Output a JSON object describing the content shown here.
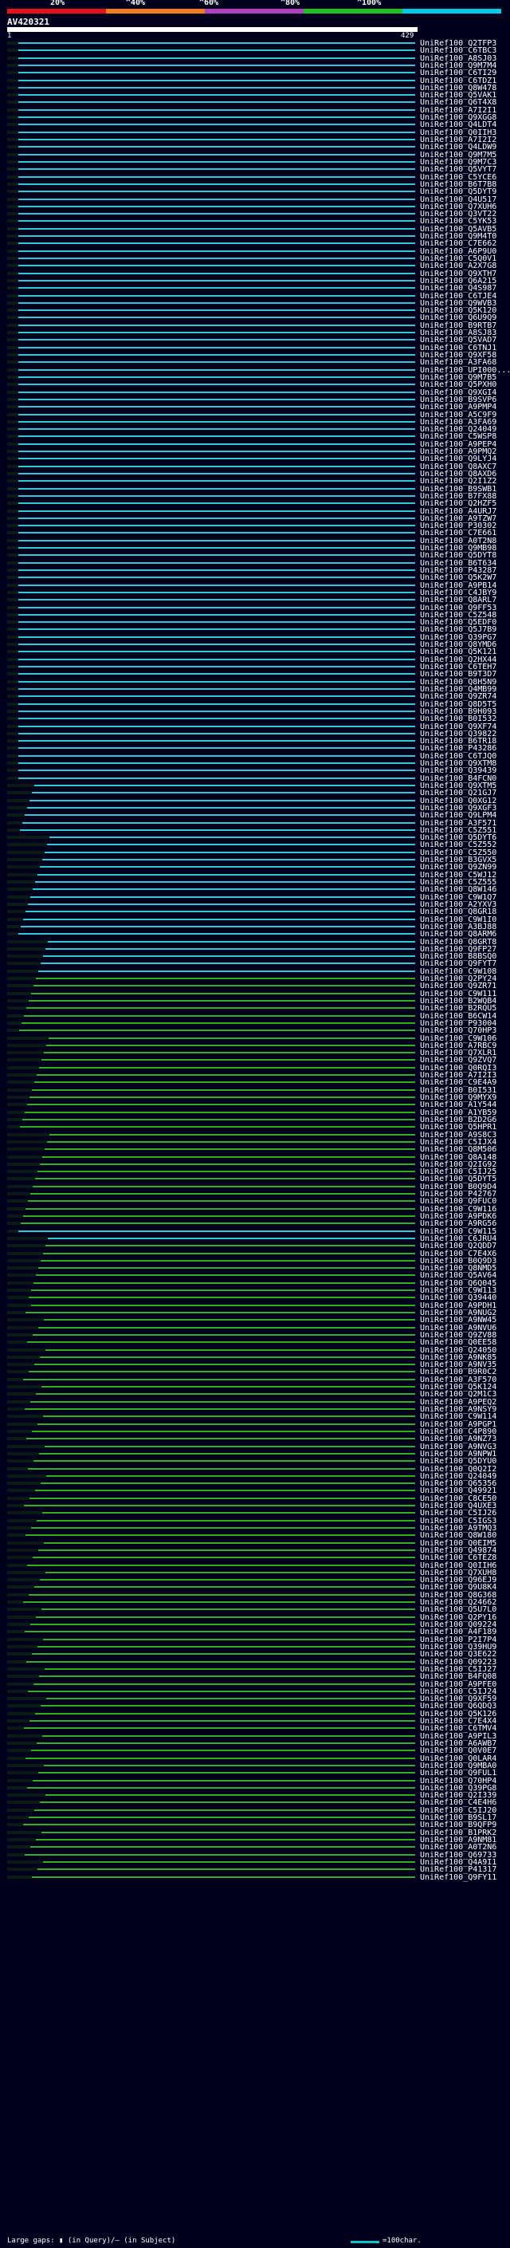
{
  "scale": {
    "labels": [
      "20%",
      "^40%",
      "^60%",
      "^80%",
      "^100%"
    ],
    "colors": [
      "#e8101c",
      "#f07c1c",
      "#b040c0",
      "#20c020",
      "#00c8e8"
    ]
  },
  "query": {
    "title": "AV420321",
    "start": "1",
    "end": "429"
  },
  "legend": {
    "gaps_text": "Large gaps: ▮ (in Query)/– (in Subject)",
    "scale_text": "=100char."
  },
  "hit_colors": {
    "cyan": "#30c8d8",
    "green": "#30b020",
    "dark": "#0a1a14"
  },
  "hits": [
    "UniRef100_Q2TFP3",
    "UniRef100_C6TBC3",
    "UniRef100_A8SJ03",
    "UniRef100_Q9M7M4",
    "UniRef100_C6TI29",
    "UniRef100_C6TDZ1",
    "UniRef100_Q8W478",
    "UniRef100_Q5VAK1",
    "UniRef100_Q6T4X8",
    "UniRef100_A7I2I1",
    "UniRef100_Q9XGG8",
    "UniRef100_Q4LDT4",
    "UniRef100_Q0IIH3",
    "UniRef100_A7I2I2",
    "UniRef100_Q4LDW9",
    "UniRef100_Q9M7M5",
    "UniRef100_Q9M7C3",
    "UniRef100_Q5VYT7",
    "UniRef100_C5YCE6",
    "UniRef100_B6T7B8",
    "UniRef100_Q5DYT9",
    "UniRef100_Q4U517",
    "UniRef100_Q7XUH6",
    "UniRef100_Q3VT22",
    "UniRef100_C5YK53",
    "UniRef100_Q5AVB5",
    "UniRef100_Q9M4T0",
    "UniRef100_C7E662",
    "UniRef100_A6P9U0",
    "UniRef100_C5Q0V1",
    "UniRef100_A2X7G8",
    "UniRef100_Q9XTH7",
    "UniRef100_Q6A215",
    "UniRef100_Q4S987",
    "UniRef100_C6TJE4",
    "UniRef100_Q9WVB3",
    "UniRef100_Q5K120",
    "UniRef100_Q6U9Q9",
    "UniRef100_B9RTB7",
    "UniRef100_A8SJ83",
    "UniRef100_Q5VAD7",
    "UniRef100_C6TNJ1",
    "UniRef100_Q9XF58",
    "UniRef100_A3FA68",
    "UniRef100_UPI000...",
    "UniRef100_Q9M7B5",
    "UniRef100_Q5PXH0",
    "UniRef100_Q9XGI4",
    "UniRef100_B9SVP6",
    "UniRef100_A9PMP4",
    "UniRef100_A5C9F9",
    "UniRef100_A3FA69",
    "UniRef100_Q24049",
    "UniRef100_C5WSP8",
    "UniRef100_A9PEP4",
    "UniRef100_A9PMQ2",
    "UniRef100_Q9LYJ4",
    "UniRef100_Q8AXC7",
    "UniRef100_Q8AXD6",
    "UniRef100_Q2I1Z2",
    "UniRef100_B9SWB1",
    "UniRef100_B7FX88",
    "UniRef100_Q2HZF5",
    "UniRef100_A4URJ7",
    "UniRef100_A9TZW7",
    "UniRef100_P30302",
    "UniRef100_C7E661",
    "UniRef100_A0T2N8",
    "UniRef100_Q9MB98",
    "UniRef100_Q5DYT8",
    "UniRef100_B6T634",
    "UniRef100_P43287",
    "UniRef100_Q5K2W7",
    "UniRef100_A9PB14",
    "UniRef100_C4JBY9",
    "UniRef100_Q8ARL7",
    "UniRef100_Q9FF53",
    "UniRef100_C5Z548",
    "UniRef100_Q5EDF0",
    "UniRef100_Q5J7B9",
    "UniRef100_Q39PG7",
    "UniRef100_Q8YMD6",
    "UniRef100_Q5K121",
    "UniRef100_Q2HX44",
    "UniRef100_C6TEH7",
    "UniRef100_B9T3D7",
    "UniRef100_Q8H5N9",
    "UniRef100_Q4MB99",
    "UniRef100_Q9ZR74",
    "UniRef100_Q8D5T5",
    "UniRef100_B9H093",
    "UniRef100_B0I532",
    "UniRef100_Q9XF74",
    "UniRef100_Q39822",
    "UniRef100_B6TR18",
    "UniRef100_P43286",
    "UniRef100_C6TJQ0",
    "UniRef100_Q9XTM8",
    "UniRef100_Q39439",
    "UniRef100_B4FCN0",
    "UniRef100_Q9XTM5",
    "UniRef100_Q21GJ7",
    "UniRef100_Q0XG12",
    "UniRef100_Q9XGF3",
    "UniRef100_Q9LPM4",
    "UniRef100_A3F571",
    "UniRef100_C5Z551",
    "UniRef100_Q5DYT6",
    "UniRef100_C5Z552",
    "UniRef100_C5Z550",
    "UniRef100_B3GVX5",
    "UniRef100_Q9ZN99",
    "UniRef100_C5WJ12",
    "UniRef100_C5Z555",
    "UniRef100_Q8W146",
    "UniRef100_C9W1Q7",
    "UniRef100_A2YXV3",
    "UniRef100_Q8GR18",
    "UniRef100_C9W1I0",
    "UniRef100_A3BJ88",
    "UniRef100_Q8ARM6",
    "UniRef100_Q8GRT8",
    "UniRef100_Q9FP27",
    "UniRef100_B8BSQ0",
    "UniRef100_Q9FYT7",
    "UniRef100_C9W108",
    "UniRef100_Q2PY24",
    "UniRef100_Q9ZR71",
    "UniRef100_C9W111",
    "UniRef100_B2WQB4",
    "UniRef100_B2RQU5",
    "UniRef100_B6CW14",
    "UniRef100_P93004",
    "UniRef100_Q70HP3",
    "UniRef100_C9W106",
    "UniRef100_A7RBC9",
    "UniRef100_Q7XLR1",
    "UniRef100_Q9ZVQ7",
    "UniRef100_Q0RQI3",
    "UniRef100_A7I2I3",
    "UniRef100_C9E4A9",
    "UniRef100_B0I531",
    "UniRef100_Q9MYX9",
    "UniRef100_A1Y544",
    "UniRef100_A1YB59",
    "UniRef100_B2D2G6",
    "UniRef100_Q5HPR1",
    "UniRef100_A9S8C3",
    "UniRef100_C5IJX4",
    "UniRef100_Q8M506",
    "UniRef100_Q8A148",
    "UniRef100_Q2IG92",
    "UniRef100_C5IJ25",
    "UniRef100_Q5DYT5",
    "UniRef100_B0Q9D4",
    "UniRef100_P42767",
    "UniRef100_Q9FUC0",
    "UniRef100_C9W116",
    "UniRef100_A9PDK6",
    "UniRef100_A9RG56",
    "UniRef100_C9W115",
    "UniRef100_C6JRU4",
    "UniRef100_Q2QDD7",
    "UniRef100_C7E4X6",
    "UniRef100_B0Q9D3",
    "UniRef100_Q8NMD5",
    "UniRef100_Q5AV64",
    "UniRef100_Q6Q045",
    "UniRef100_C9W113",
    "UniRef100_Q39440",
    "UniRef100_A9PDH1",
    "UniRef100_A9NUG2",
    "UniRef100_A9NW45",
    "UniRef100_A9NVU6",
    "UniRef100_Q9ZV88",
    "UniRef100_Q0EE58",
    "UniRef100_Q24050",
    "UniRef100_A9NK85",
    "UniRef100_A9NV35",
    "UniRef100_B9R0C2",
    "UniRef100_A3F570",
    "UniRef100_Q5K124",
    "UniRef100_Q2M1C3",
    "UniRef100_A9PEQ2",
    "UniRef100_A9NSY9",
    "UniRef100_C9W114",
    "UniRef100_A9PGP1",
    "UniRef100_C4P890",
    "UniRef100_A9NZ73",
    "UniRef100_A9NVG3",
    "UniRef100_A9NPW1",
    "UniRef100_Q5DYU0",
    "UniRef100_Q0Q2I2",
    "UniRef100_Q24049",
    "UniRef100_Q65356",
    "UniRef100_Q49921",
    "UniRef100_C8CE50",
    "UniRef100_Q4UXE3",
    "UniRef100_C5IJ26",
    "UniRef100_C5IGS3",
    "UniRef100_A9TMQ3",
    "UniRef100_Q8W180",
    "UniRef100_Q0EIM5",
    "UniRef100_Q49874",
    "UniRef100_C6TEZ8",
    "UniRef100_Q0IIH6",
    "UniRef100_Q7XUH8",
    "UniRef100_Q96EJ9",
    "UniRef100_Q9U8K4",
    "UniRef100_Q8G368",
    "UniRef100_Q24662",
    "UniRef100_Q5U7L0",
    "UniRef100_Q2PY16",
    "UniRef100_Q09224",
    "UniRef100_A4F189",
    "UniRef100_P2I7P4",
    "UniRef100_Q39HU9",
    "UniRef100_Q3E622",
    "UniRef100_Q09223",
    "UniRef100_C5IJ27",
    "UniRef100_B4FQ08",
    "UniRef100_A9PFE0",
    "UniRef100_C5IJ24",
    "UniRef100_Q9XF59",
    "UniRef100_Q6QDQ3",
    "UniRef100_Q5K126",
    "UniRef100_C7E4X4",
    "UniRef100_C6TMV4",
    "UniRef100_A9PIL3",
    "UniRef100_A6AWB7",
    "UniRef100_Q0V0E7",
    "UniRef100_Q0LAR4",
    "UniRef100_Q9MBA0",
    "UniRef100_Q9FUL1",
    "UniRef100_Q70HP4",
    "UniRef100_Q39PG8",
    "UniRef100_Q2I339",
    "UniRef100_C4E4H6",
    "UniRef100_C5IJ20",
    "UniRef100_B9SL17",
    "UniRef100_B9QFP9",
    "UniRef100_B1PRK2",
    "UniRef100_A9NM81",
    "UniRef100_A0T2N6",
    "UniRef100_Q69733",
    "UniRef100_Q4A9I1",
    "UniRef100_P41317",
    "UniRef100_Q9FY11"
  ]
}
